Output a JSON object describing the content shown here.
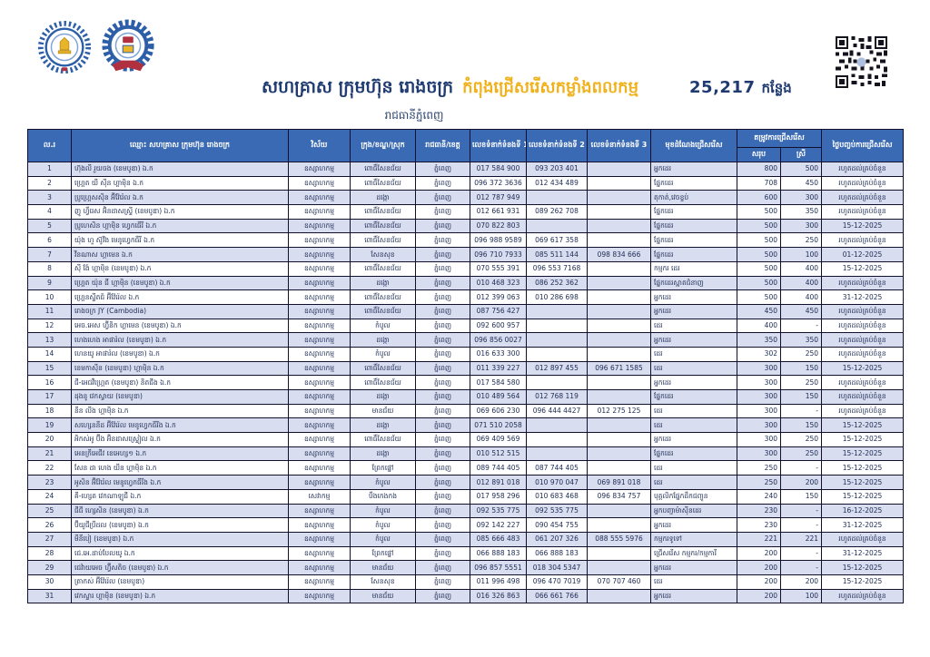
{
  "header": {
    "title_main": "សហគ្រាស ក្រុមហ៊ុន រោងចក្រ",
    "title_highlight": "កំពុងជ្រើសរើសកម្លាំងពលកម្ម",
    "vacancy_count": "25,217",
    "vacancy_unit": "កន្លែង",
    "subtitle": "រាជធានីភ្នំពេញ",
    "accent_navy": "#1e3a70",
    "accent_yellow": "#f0b21c",
    "icons": [
      "nea-logo-icon",
      "ministry-logo-icon",
      "qr-code"
    ]
  },
  "table": {
    "header_bg": "#3a6ab4",
    "row_alt_bg": "#d8ddf0",
    "headers": {
      "no": "ល.រ",
      "name": "ឈ្មោះ សហគ្រាស ក្រុមហ៊ុន រោងចក្រ",
      "sector": "វិស័យ",
      "district": "ក្រុង/ខណ្ឌ/ស្រុក",
      "province": "រាជធានី/ខេត្ត",
      "phone1": "លេខទំនាក់ទំនងទី 1",
      "phone2": "លេខទំនាក់ទំនងទី 2",
      "phone3": "លេខទំនាក់ទំនងទី 3",
      "position": "មុខដំណែងជ្រើសរើស",
      "demand_group": "តម្រូវការជ្រើសរើស",
      "demand_total": "សរុប",
      "demand_female": "ស្រី",
      "end_date": "ថ្ងៃបញ្ចប់ការជ្រើសរើស"
    },
    "column_keys": [
      "no",
      "name",
      "sector",
      "district",
      "province",
      "phone1",
      "phone2",
      "phone3",
      "position",
      "total",
      "female",
      "end_date"
    ],
    "rows": [
      [
        "1",
        "ហ៊ុងលី រួយចង (ខេមបូឌា) ឯ.ក",
        "ឧស្សាហកម្ម",
        "ពោធិ៍សែនជ័យ",
        "ភ្នំពេញ",
        "017 584 900",
        "093 203 401",
        "",
        "អ្នកដេរ",
        "800",
        "500",
        "រហូតដល់គ្រប់ចំនួន"
      ],
      [
        "2",
        "ហ្គ្រេត យី ស៊ីន ហ្គាម៉ិន ឯ.ក",
        "ឧស្សាហកម្ម",
        "ពោធិ៍សែនជ័យ",
        "ភ្នំពេញ",
        "096 372 3636",
        "012 434 489",
        "",
        "ផ្នែកដេរ",
        "708",
        "450",
        "រហូតដល់គ្រប់ចំនួន"
      ],
      [
        "3",
        "ប្រូហ្គ្រេសស៊ិន អ៊ីវ៉ែរ៉េល ឯ.ក",
        "ឧស្សាហកម្ម",
        "ដង្កោ",
        "ភ្នំពេញ",
        "012 787 949",
        "",
        "",
        "តុកាត់,វេចខ្ចប់",
        "600",
        "300",
        "រហូតដល់គ្រប់ចំនួន"
      ],
      [
        "4",
        "ញូ ហ្វឹរេស អ៊ិនដាសស្ទ្រី (ខេមបូឌា) ឯ.ក",
        "ឧស្សាហកម្ម",
        "ពោធិ៍សែនជ័យ",
        "ភ្នំពេញ",
        "012 661 931",
        "089 262 708",
        "",
        "ផ្នែកដេរ",
        "500",
        "350",
        "រហូតដល់គ្រប់ចំនួន"
      ],
      [
        "5",
        "ប្រូហេសិន ហ្គាម៉ិន ហ្វេកធើរី ឯ.ក",
        "ឧស្សាហកម្ម",
        "ពោធិ៍សែនជ័យ",
        "ភ្នំពេញ",
        "070 822 803",
        "",
        "",
        "ផ្នែកដេរ",
        "500",
        "300",
        "15-12-2025"
      ],
      [
        "6",
        "យ៉ុង ហួ ស៊ូវីង មេនូហ្វេកធឺរី ឯ.ក",
        "ឧស្សាហកម្ម",
        "ពោធិ៍សែនជ័យ",
        "ភ្នំពេញ",
        "096 988 9589",
        "069 617 358",
        "",
        "ផ្នែកដេរ",
        "500",
        "250",
        "រហូតដល់គ្រប់ចំនួន"
      ],
      [
        "7",
        "វីនណាស ហ្គាមេន ឯ.ក",
        "ឧស្សាហកម្ម",
        "សែនសុខ",
        "ភ្នំពេញ",
        "096 710 7933",
        "085 511 144",
        "098 834 666",
        "ផ្នែកដេរ",
        "500",
        "100",
        "01-12-2025"
      ],
      [
        "8",
        "ស៊ី ង៉ែ ហ្គាម៉ិន (ខេមបូឌា) ឯ.ក",
        "ឧស្សាហកម្ម",
        "ពោធិ៍សែនជ័យ",
        "ភ្នំពេញ",
        "070 555 391",
        "096 553 7168",
        "",
        "កម្មករ ដេរ",
        "500",
        "400",
        "15-12-2025"
      ],
      [
        "9",
        "ហ្គ្រេត យ៉ុន ជី ហ្គាម៉ិន (ខេមបូឌា) ឯ.ក",
        "ឧស្សាហកម្ម",
        "ដង្កោ",
        "ភ្នំពេញ",
        "010 468 323",
        "086 252 362",
        "",
        "ផ្នែកដេរស្អាតជំនាញ",
        "500",
        "400",
        "រហូតដល់គ្រប់ចំនួន"
      ],
      [
        "10",
        "ហ្គ្រេនស្ទីតជ៍ អ៊ីវ៉ែរ៉េល ឯ.ក",
        "ឧស្សាហកម្ម",
        "ពោធិ៍សែនជ័យ",
        "ភ្នំពេញ",
        "012 399 063",
        "010 286 698",
        "",
        "អ្នកដេរ",
        "500",
        "400",
        "31-12-2025"
      ],
      [
        "11",
        "រោងចក្រ JY (Cambodia)",
        "ឧស្សាហកម្ម",
        "ពោធិ៍សែនជ័យ",
        "ភ្នំពេញ",
        "087 756 427",
        "",
        "",
        "អ្នកដេរ",
        "450",
        "450",
        "រហូតដល់គ្រប់ចំនួន"
      ],
      [
        "12",
        "អេច.អេស ហ្វ៊ីនិក ហ្គាមេន (ខេមបូឌា) ឯ.ក",
        "ឧស្សាហកម្ម",
        "កំបូល",
        "ភ្នំពេញ",
        "092 600 957",
        "",
        "",
        "ដេរ",
        "400",
        "-",
        "រហូតដល់គ្រប់ចំនួន"
      ],
      [
        "13",
        "ហេងហេង អាផារ៉ល (ខេមបូឌា) ឯ.ក",
        "ឧស្សាហកម្ម",
        "ដង្កោ",
        "ភ្នំពេញ",
        "096 856 0027",
        "",
        "",
        "អ្នកដេរ",
        "350",
        "350",
        "រហូតដល់គ្រប់ចំនួន"
      ],
      [
        "14",
        "ហេនយូ អាផារ៉ល (ខេមបូឌា) ឯ.ក",
        "ឧស្សាហកម្ម",
        "កំបូល",
        "ភ្នំពេញ",
        "016 633 300",
        "",
        "",
        "ដេរ",
        "302",
        "250",
        "រហូតដល់គ្រប់ចំនួន"
      ],
      [
        "15",
        "ខេមកាស៊ីន (ខេមបូឌា) ហ្គាម៉ិន ឯ.ក",
        "ឧស្សាហកម្ម",
        "ពោធិ៍សែនជ័យ",
        "ភ្នំពេញ",
        "011 339 227",
        "012 897 455",
        "096 671 1585",
        "ដេរ",
        "300",
        "150",
        "15-12-2025"
      ],
      [
        "16",
        "ជី-អេជវឺហ្គ្រេត (ខេមបូឌា) និតជីង ឯ.ក",
        "ឧស្សាហកម្ម",
        "ពោធិ៍សែនជ័យ",
        "ភ្នំពេញ",
        "017 584 580",
        "",
        "",
        "អ្នកដេរ",
        "300",
        "250",
        "រហូតដល់គ្រប់ចំនួន"
      ],
      [
        "17",
        "ដុងនូ វេកស្វាយ (ខេមបូឌា)",
        "ឧស្សាហកម្ម",
        "ដង្កោ",
        "ភ្នំពេញ",
        "010 489 564",
        "012 768 119",
        "",
        "ផ្នែកដេរ",
        "300",
        "150",
        "រហូតដល់គ្រប់ចំនួន"
      ],
      [
        "18",
        "នីន លីង ហ្គាម៉ិន ឯ.ក",
        "ឧស្សាហកម្ម",
        "មានជ័យ",
        "ភ្នំពេញ",
        "069 606 230",
        "096 444 4427",
        "012 275 125",
        "ដេរ",
        "300",
        "-",
        "រហូតដល់គ្រប់ចំនួន"
      ],
      [
        "19",
        "សហ្សេននីដ អ៊ីវ៉ែរ៉េល មេនូហ្វេកធីរីង ឯ.ក",
        "ឧស្សាហកម្ម",
        "ដង្កោ",
        "ភ្នំពេញ",
        "071 510 2058",
        "",
        "",
        "ដេរ",
        "300",
        "150",
        "15-12-2025"
      ],
      [
        "20",
        "អិកស់អូ ប៊ីង អ៊ិនដាសស្រ្ទៀល ឯ.ក",
        "ឧស្សាហកម្ម",
        "ពោធិ៍សែនជ័យ",
        "ភ្នំពេញ",
        "069 409 569",
        "",
        "",
        "អ្នកដេរ",
        "300",
        "250",
        "15-12-2025"
      ],
      [
        "21",
        "អេនក្រីអេជីវ ខេអេហ្ស១ ឯ.ក",
        "ឧស្សាហកម្ម",
        "ដង្កោ",
        "ភ្នំពេញ",
        "010 512 515",
        "",
        "",
        "ផ្នែកដេរ",
        "300",
        "250",
        "15-12-2025"
      ],
      [
        "22",
        "សែន ដា ហេង យីន ហ្គាម៉ិន ឯ.ក",
        "ឧស្សាហកម្ម",
        "ព្រែកផ្នៅ",
        "ភ្នំពេញ",
        "089 744 405",
        "087 744 405",
        "",
        "ដេរ",
        "250",
        "-",
        "15-12-2025"
      ],
      [
        "23",
        "អូសិន អ៊ីវ៉ែរ៉េល មេនូហ្វេកធីរីង ឯ.ក",
        "ឧស្សាហកម្ម",
        "កំបូល",
        "ភ្នំពេញ",
        "012 891 018",
        "010 970 047",
        "069 891 018",
        "ដេរ",
        "250",
        "200",
        "15-12-2025"
      ],
      [
        "24",
        "គី-ហ្សេត វេកណាឡូជី ឯ.ក",
        "សេវាកម្ម",
        "បឹងកេងកង",
        "ភ្នំពេញ",
        "017 958 296",
        "010 683 468",
        "096 834 757",
        "បុគ្គលិកផ្នែកដឹកជញ្ជូន",
        "240",
        "150",
        "15-12-2025"
      ],
      [
        "25",
        "ជីជី ហ្សេសិន (ខេមបូឌា) ឯ.ក",
        "ឧស្សាហកម្ម",
        "កំបូល",
        "ភ្នំពេញ",
        "092 535 775",
        "092 535 775",
        "",
        "អ្នកបញ្ជាម៉ាស៊ីនដេរ",
        "230",
        "-",
        "16-12-2025"
      ],
      [
        "26",
        "ប៊ីយូជីប្រីដល (ខេមបូឌា) ឯ.ក",
        "ឧស្សាហកម្ម",
        "កំបូល",
        "ភ្នំពេញ",
        "092 142 227",
        "090 454 755",
        "",
        "អ្នកដេរ",
        "230",
        "-",
        "31-12-2025"
      ],
      [
        "27",
        "មីនីបៀ (ខេមបូឌា) ឯ.ក",
        "ឧស្សាហកម្ម",
        "កំបូល",
        "ភ្នំពេញ",
        "085 666 483",
        "061 207 326",
        "088 555 5976",
        "កម្មករទូទៅ",
        "221",
        "221",
        "រហូតដល់គ្រប់ចំនួន"
      ],
      [
        "28",
        "ជេ.អេ.ដាប់បែលយូ ឯ.ក",
        "ឧស្សាហកម្ម",
        "ព្រែកផ្នៅ",
        "ភ្នំពេញ",
        "066 888 183",
        "066 888 183",
        "",
        "ជ្រើសរើស កម្មករ/កម្មការី",
        "200",
        "-",
        "31-12-2025"
      ],
      [
        "29",
        "ជេវ៉ាយអេច ហ្វ៊ីសតិច (ខេមបូឌា) ឯ.ក",
        "ឧស្សាហកម្ម",
        "មានជ័យ",
        "ភ្នំពេញ",
        "096 857 5551",
        "018 304 5347",
        "",
        "អ្នកដេរ",
        "200",
        "-",
        "15-12-2025"
      ],
      [
        "30",
        "ត្រាកស់ អ៊ីវ៉ែរ៉េល (ខេមបូឌា)",
        "ឧស្សាហកម្ម",
        "សែនសុខ",
        "ភ្នំពេញ",
        "011 996 498",
        "096 470 7019",
        "070 707 460",
        "ដេរ",
        "200",
        "200",
        "15-12-2025"
      ],
      [
        "31",
        "វេកស្ទារ ហ្គាម៉ិន (ខេមបូឌា) ឯ.ក",
        "ឧស្សាហកម្ម",
        "មានជ័យ",
        "ភ្នំពេញ",
        "016 326 863",
        "066 661 766",
        "",
        "អ្នកដេរ",
        "200",
        "100",
        "រហូតដល់គ្រប់ចំនួន"
      ]
    ]
  }
}
